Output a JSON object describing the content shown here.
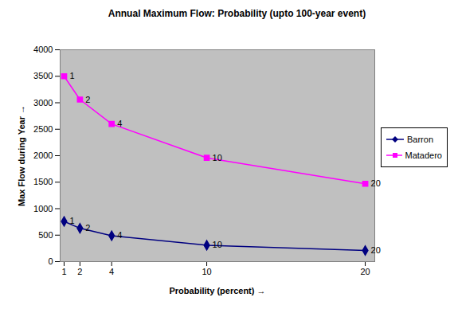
{
  "chart_data": {
    "type": "line",
    "title": "Annual Maximum Flow: Probability (upto 100-year event)",
    "x_label": "Probability (percent)",
    "y_label": "Max Flow during Year",
    "x": [
      1,
      2,
      4,
      10,
      20
    ],
    "series": [
      {
        "name": "Barron",
        "color": "#000080",
        "marker": "diamond",
        "values": [
          760,
          630,
          490,
          310,
          210
        ]
      },
      {
        "name": "Matadero",
        "color": "#ff00ff",
        "marker": "square",
        "values": [
          3500,
          3060,
          2600,
          1960,
          1470
        ]
      }
    ],
    "xlim": [
      0.75,
      20.6
    ],
    "xticks": [
      1,
      2,
      4,
      10,
      20
    ],
    "ylim": [
      0,
      4000
    ],
    "yticks": [
      0,
      500,
      1000,
      1500,
      2000,
      2500,
      3000,
      3500,
      4000
    ],
    "grid": false,
    "legend": "right",
    "data_labels": "x"
  }
}
